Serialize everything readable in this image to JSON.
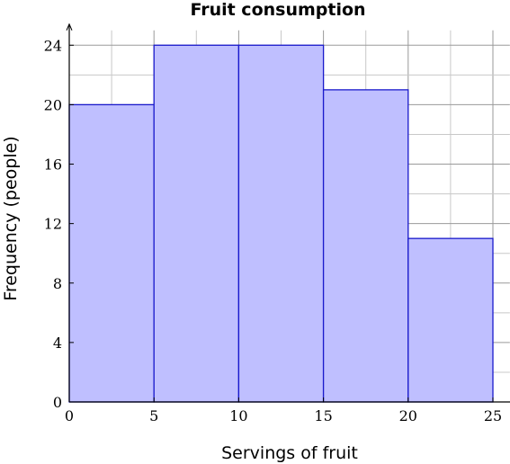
{
  "chart_data": {
    "type": "bar",
    "title": "Fruit consumption",
    "xlabel": "Servings of fruit",
    "ylabel": "Frequency (people)",
    "bins": [
      {
        "from": 0,
        "to": 5,
        "value": 20
      },
      {
        "from": 5,
        "to": 10,
        "value": 24
      },
      {
        "from": 10,
        "to": 15,
        "value": 24
      },
      {
        "from": 15,
        "to": 20,
        "value": 21
      },
      {
        "from": 20,
        "to": 25,
        "value": 11
      }
    ],
    "xlim": [
      0,
      26
    ],
    "ylim": [
      0,
      25
    ],
    "xticks": [
      0,
      5,
      10,
      15,
      20,
      25
    ],
    "yticks": [
      0,
      4,
      8,
      12,
      16,
      20,
      24
    ],
    "x_grid_step": 2.5,
    "y_grid_step": 2,
    "grid": true,
    "bar_fill": "#bfbfff",
    "bar_stroke": "#1a1acc"
  }
}
